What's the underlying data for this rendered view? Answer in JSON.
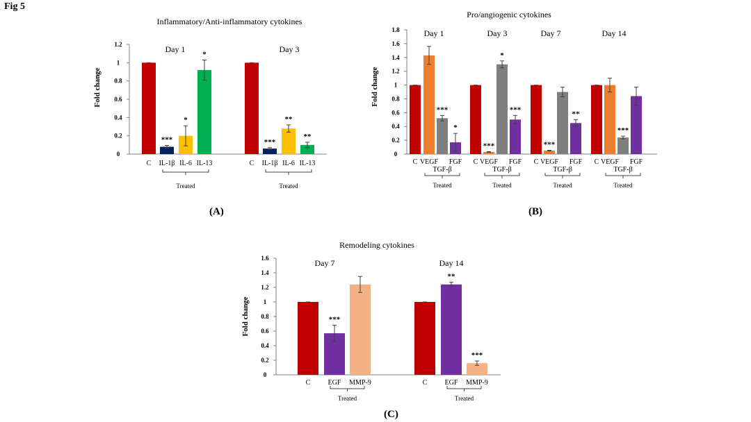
{
  "figure": {
    "fig_label": "Fig 5",
    "panel_labels": [
      "(A)",
      "(B)",
      "(C)"
    ]
  },
  "colors": {
    "control": "#c00000",
    "il1b": "#002060",
    "il6": "#ffc000",
    "il13": "#00b050",
    "vegf": "#ed7d31",
    "tgfb": "#7f7f7f",
    "fgf": "#7030a0",
    "egf": "#7030a0",
    "mmp9": "#f4b183"
  },
  "chart_data": [
    {
      "type": "bar",
      "title": "Inflammatory/Anti-inflammatory cytokines",
      "ylabel": "Fold change",
      "ylim": [
        0,
        1.2
      ],
      "yticks": [
        "0",
        "0.2",
        "0.4",
        "0.6",
        "0.8",
        "1",
        "1.2"
      ],
      "group_label": "Treated",
      "groups": [
        {
          "day": "Day 1",
          "bars": [
            {
              "label": "C",
              "value": 1.0,
              "err": 0.0,
              "sig": "",
              "color": "control"
            },
            {
              "label": "IL-1β",
              "value": 0.08,
              "err": 0.015,
              "sig": "***",
              "color": "il1b"
            },
            {
              "label": "IL-6",
              "value": 0.2,
              "err": 0.11,
              "sig": "*",
              "color": "il6"
            },
            {
              "label": "IL-13",
              "value": 0.92,
              "err": 0.11,
              "sig": "*",
              "color": "il13"
            }
          ]
        },
        {
          "day": "Day 3",
          "bars": [
            {
              "label": "C",
              "value": 1.0,
              "err": 0.0,
              "sig": "",
              "color": "control"
            },
            {
              "label": "IL-1β",
              "value": 0.06,
              "err": 0.01,
              "sig": "***",
              "color": "il1b"
            },
            {
              "label": "IL-6",
              "value": 0.28,
              "err": 0.04,
              "sig": "**",
              "color": "il6"
            },
            {
              "label": "IL-13",
              "value": 0.1,
              "err": 0.03,
              "sig": "**",
              "color": "il13"
            }
          ]
        }
      ]
    },
    {
      "type": "bar",
      "title": "Pro/angiogenic cytokines",
      "ylabel": "Fold change",
      "ylim": [
        0,
        1.8
      ],
      "yticks": [
        "0",
        "0.2",
        "0.4",
        "0.6",
        "0.8",
        "1",
        "1.2",
        "1.4",
        "1.6",
        "1.8"
      ],
      "group_label": "Treated",
      "groups": [
        {
          "day": "Day 1",
          "bars": [
            {
              "label": "C",
              "value": 1.0,
              "err": 0.0,
              "sig": "",
              "color": "control"
            },
            {
              "label": "VEGF",
              "value": 1.43,
              "err": 0.13,
              "sig": "",
              "color": "vegf"
            },
            {
              "label": "TGF-β",
              "value": 0.52,
              "err": 0.04,
              "sig": "***",
              "color": "tgfb"
            },
            {
              "label": "FGF",
              "value": 0.17,
              "err": 0.13,
              "sig": "*",
              "color": "fgf"
            }
          ]
        },
        {
          "day": "Day 3",
          "bars": [
            {
              "label": "C",
              "value": 1.0,
              "err": 0.0,
              "sig": "",
              "color": "control"
            },
            {
              "label": "VEGF",
              "value": 0.03,
              "err": 0.005,
              "sig": "***",
              "color": "vegf"
            },
            {
              "label": "TGF-β",
              "value": 1.3,
              "err": 0.05,
              "sig": "*",
              "color": "tgfb"
            },
            {
              "label": "FGF",
              "value": 0.5,
              "err": 0.06,
              "sig": "***",
              "color": "fgf"
            }
          ]
        },
        {
          "day": "Day 7",
          "bars": [
            {
              "label": "C",
              "value": 1.0,
              "err": 0.0,
              "sig": "",
              "color": "control"
            },
            {
              "label": "VEGF",
              "value": 0.05,
              "err": 0.005,
              "sig": "***",
              "color": "vegf"
            },
            {
              "label": "TGF-β",
              "value": 0.9,
              "err": 0.07,
              "sig": "",
              "color": "tgfb"
            },
            {
              "label": "FGF",
              "value": 0.45,
              "err": 0.05,
              "sig": "**",
              "color": "fgf"
            }
          ]
        },
        {
          "day": "Day 14",
          "bars": [
            {
              "label": "C",
              "value": 1.0,
              "err": 0.0,
              "sig": "",
              "color": "control"
            },
            {
              "label": "VEGF",
              "value": 1.0,
              "err": 0.1,
              "sig": "",
              "color": "vegf"
            },
            {
              "label": "TGF-β",
              "value": 0.24,
              "err": 0.02,
              "sig": "***",
              "color": "tgfb"
            },
            {
              "label": "FGF",
              "value": 0.84,
              "err": 0.13,
              "sig": "",
              "color": "fgf"
            }
          ]
        }
      ]
    },
    {
      "type": "bar",
      "title": "Remodeling cytokines",
      "ylabel": "Fold change",
      "ylim": [
        0,
        1.6
      ],
      "yticks": [
        "0",
        "0.2",
        "0.4",
        "0.6",
        "0.8",
        "1",
        "1.2",
        "1.4",
        "1.6"
      ],
      "group_label": "Treated",
      "groups": [
        {
          "day": "Day 7",
          "bars": [
            {
              "label": "C",
              "value": 1.0,
              "err": 0.0,
              "sig": "",
              "color": "control"
            },
            {
              "label": "EGF",
              "value": 0.57,
              "err": 0.11,
              "sig": "***",
              "color": "egf"
            },
            {
              "label": "MMP-9",
              "value": 1.24,
              "err": 0.11,
              "sig": "",
              "color": "mmp9"
            }
          ]
        },
        {
          "day": "Day 14",
          "bars": [
            {
              "label": "C",
              "value": 1.0,
              "err": 0.0,
              "sig": "",
              "color": "control"
            },
            {
              "label": "EGF",
              "value": 1.24,
              "err": 0.03,
              "sig": "**",
              "color": "egf"
            },
            {
              "label": "MMP-9",
              "value": 0.16,
              "err": 0.03,
              "sig": "***",
              "color": "mmp9"
            }
          ]
        }
      ]
    }
  ]
}
